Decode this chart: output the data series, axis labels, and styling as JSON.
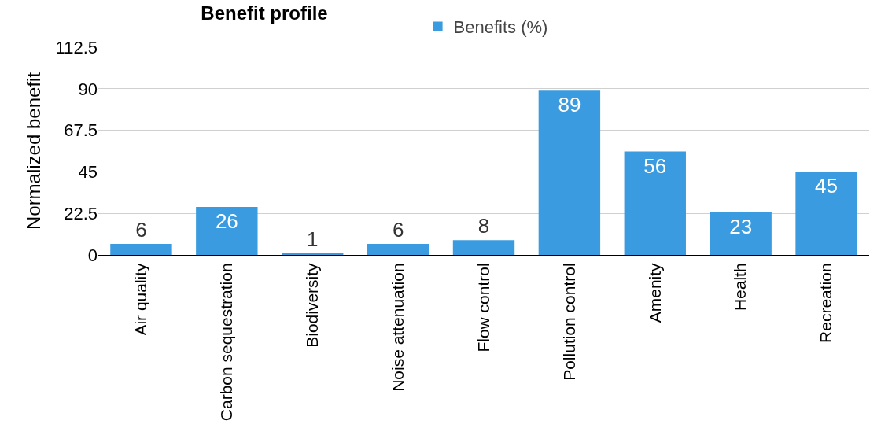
{
  "chart_data": {
    "type": "bar",
    "title": "Benefit profile",
    "ylabel": "Normalized benefit",
    "categories": [
      "Air quality",
      "Carbon sequestration",
      "Biodiversity",
      "Noise attenuation",
      "Flow control",
      "Pollution control",
      "Amenity",
      "Health",
      "Recreation"
    ],
    "series": [
      {
        "name": "Benefits (%)",
        "color": "#3a9be0",
        "values": [
          6,
          26,
          1,
          6,
          8,
          89,
          56,
          23,
          45
        ]
      }
    ],
    "ylim": [
      0,
      112.5
    ],
    "yticks": [
      0,
      22.5,
      45,
      67.5,
      90,
      112.5
    ],
    "grid": "y",
    "legend": "top",
    "data_labels": true
  }
}
